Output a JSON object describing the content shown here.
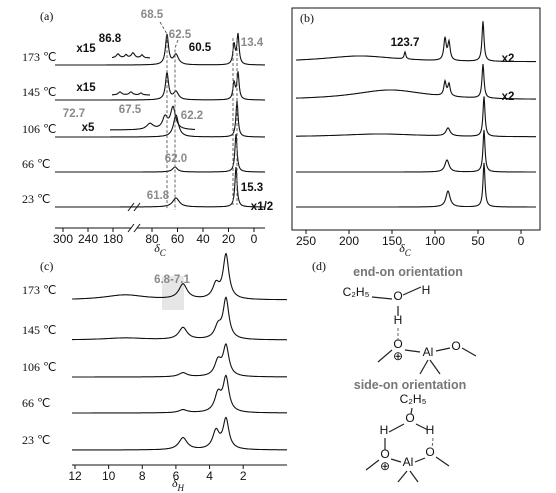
{
  "panels": [
    {
      "label": "(a)",
      "traces": [
        "173 ℃",
        "145 ℃",
        "106 ℃",
        "66 ℃",
        "23 ℃"
      ],
      "xticks": [
        300,
        240,
        180,
        80,
        60,
        40,
        20,
        0
      ],
      "xlim": [
        300,
        0
      ],
      "axis_break": [
        80,
        180
      ],
      "xlabel": {
        "symbol": "δ",
        "subscript": "C"
      },
      "annotations": [
        "68.5",
        "86.8",
        "x15",
        "62.5",
        "60.5",
        "13.4",
        "x15",
        "72.7",
        "67.5",
        "62.2",
        "x5",
        "62.0",
        "61.8",
        "15.3",
        "x1/2"
      ]
    },
    {
      "label": "(b)",
      "xticks": [
        250,
        200,
        150,
        100,
        50,
        0
      ],
      "xlim": [
        250,
        0
      ],
      "xlabel": {
        "symbol": "δ",
        "subscript": "C"
      },
      "annotations": [
        "123.7",
        "x2",
        "x2"
      ]
    },
    {
      "label": "(c)",
      "traces": [
        "173 ℃",
        "145 ℃",
        "106 ℃",
        "66 ℃",
        "23 ℃"
      ],
      "xticks": [
        12,
        10,
        8,
        6,
        4,
        2
      ],
      "xlim": [
        12,
        1
      ],
      "xlabel": {
        "symbol": "δ",
        "subscript": "H"
      },
      "annotations": [
        "6.8-7.1"
      ]
    },
    {
      "label": "(d)",
      "end_on": {
        "title": "end-on orientation",
        "atoms": [
          "C₂H₅",
          "O",
          "H",
          "H",
          "O",
          "⊕",
          "Al",
          "O"
        ]
      },
      "side_on": {
        "title": "side-on orientation",
        "atoms": [
          "C₂H₅",
          "O",
          "H",
          "H",
          "O",
          "⊕",
          "Al",
          "O"
        ]
      }
    }
  ]
}
